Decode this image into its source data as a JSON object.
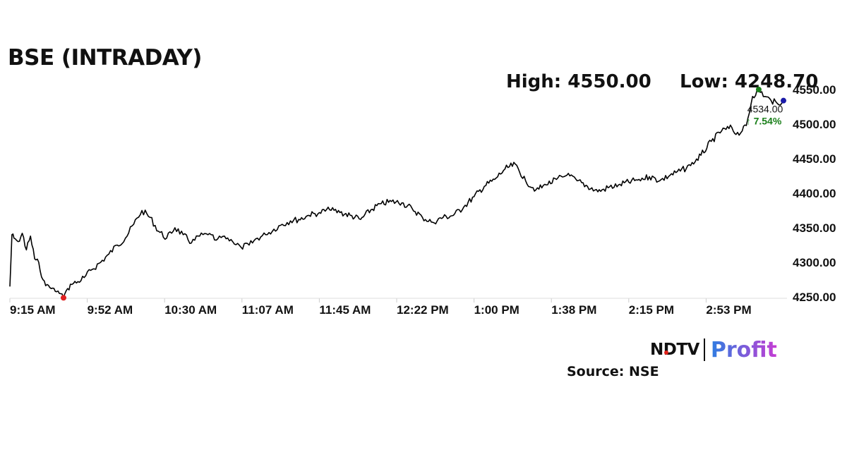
{
  "title": "BSE (INTRADAY)",
  "stats": {
    "high": "High: 4550.00",
    "low": "Low: 4248.70"
  },
  "last": {
    "value": "4534.00",
    "change": "↑ 7.54%"
  },
  "source": "Source: NSE",
  "logo": {
    "primary": "NDTV",
    "secondary": "Profit"
  },
  "colors": {
    "line": "#000000",
    "high_marker": "#1a7f1a",
    "low_marker": "#e02020",
    "last_marker": "#1a1aa8",
    "change_text": "#1a7f1a",
    "grid": "#dddddd"
  },
  "chart_data": {
    "type": "line",
    "title": "BSE (INTRADAY)",
    "xlabel": "",
    "ylabel": "",
    "x_ticks": [
      "9:15 AM",
      "9:52 AM",
      "10:30 AM",
      "11:07 AM",
      "11:45 AM",
      "12:22 PM",
      "1:00 PM",
      "1:38 PM",
      "2:15 PM",
      "2:53 PM"
    ],
    "y_ticks": [
      "4250.00",
      "4300.00",
      "4350.00",
      "4400.00",
      "4450.00",
      "4500.00",
      "4550.00"
    ],
    "ylim": [
      4250,
      4550
    ],
    "x_range_minutes": [
      0,
      375
    ],
    "series": [
      {
        "x": [
          0,
          1,
          2,
          4,
          6,
          8,
          10,
          12,
          14,
          16,
          18,
          20,
          22,
          24,
          26,
          28,
          30,
          33,
          36,
          40,
          44,
          48,
          52,
          56,
          60,
          64,
          68,
          72,
          76,
          80,
          84,
          88,
          92,
          96,
          100,
          104,
          108,
          112,
          116,
          120,
          124,
          128,
          132,
          136,
          140,
          145,
          150,
          155,
          160,
          165,
          170,
          175,
          180,
          185,
          190,
          195,
          200,
          205,
          210,
          215,
          220,
          225,
          230,
          235,
          240,
          245,
          250,
          255,
          260,
          265,
          270,
          275,
          280,
          285,
          290,
          295,
          300,
          305,
          310,
          315,
          320,
          325,
          330,
          335,
          340,
          345,
          350,
          352,
          355,
          357,
          360,
          363,
          366,
          369,
          372,
          375
        ],
        "values": [
          4265,
          4340,
          4335,
          4330,
          4342,
          4318,
          4338,
          4305,
          4300,
          4275,
          4268,
          4262,
          4258,
          4255,
          4249,
          4262,
          4268,
          4272,
          4278,
          4290,
          4300,
          4312,
          4325,
          4335,
          4355,
          4375,
          4365,
          4345,
          4335,
          4350,
          4340,
          4328,
          4338,
          4340,
          4332,
          4338,
          4330,
          4322,
          4325,
          4335,
          4340,
          4348,
          4355,
          4360,
          4362,
          4368,
          4372,
          4376,
          4372,
          4368,
          4362,
          4376,
          4385,
          4388,
          4386,
          4378,
          4365,
          4358,
          4365,
          4368,
          4380,
          4395,
          4410,
          4420,
          4435,
          4442,
          4418,
          4405,
          4412,
          4420,
          4426,
          4418,
          4410,
          4402,
          4408,
          4412,
          4416,
          4420,
          4424,
          4418,
          4426,
          4432,
          4440,
          4455,
          4475,
          4490,
          4495,
          4485,
          4490,
          4498,
          4540,
          4550,
          4540,
          4534,
          4530,
          4534
        ]
      }
    ],
    "annotations": {
      "high_marker_value": 4550.0,
      "low_marker_value": 4248.7,
      "last_value": 4534.0,
      "change_percent": 7.54
    },
    "grid": false
  }
}
